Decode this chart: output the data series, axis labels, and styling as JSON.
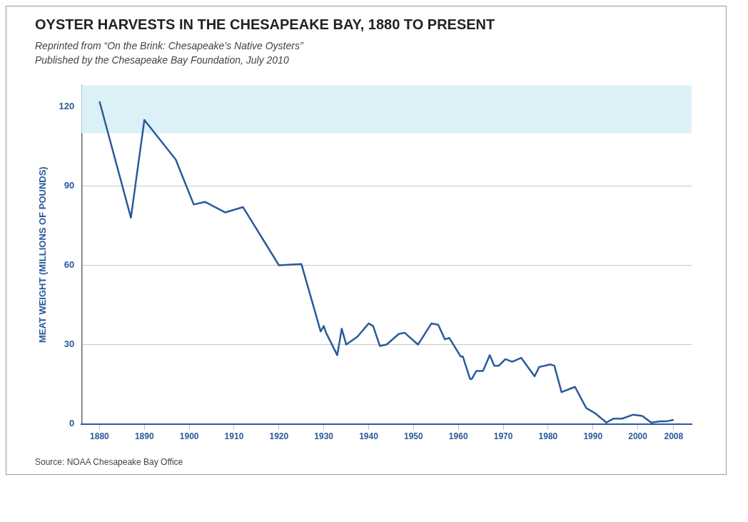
{
  "chart_data": {
    "type": "line",
    "title": "OYSTER HARVESTS IN THE CHESAPEAKE BAY, 1880 TO PRESENT",
    "subtitle": "Reprinted from “On the Brink: Chesapeake’s Native Oysters”\nPublished by the Chesapeake Bay Foundation, July 2010",
    "ylabel": "MEAT WEIGHT (MILLIONS OF POUNDS)",
    "annotations": [
      "Source: NOAA Chesapeake Bay Office"
    ],
    "x": [
      1880,
      1887,
      1890,
      1897,
      1901,
      1903.5,
      1908,
      1912,
      1920,
      1925,
      1929.3,
      1930,
      1930.5,
      1933,
      1934,
      1935,
      1937.5,
      1940,
      1941,
      1942.5,
      1944,
      1946.7,
      1948,
      1951,
      1954,
      1955.5,
      1957,
      1958,
      1960.5,
      1961,
      1962.6,
      1963,
      1964,
      1965.5,
      1967,
      1968,
      1969,
      1970.5,
      1972,
      1974,
      1977,
      1978,
      1980.5,
      1981.4,
      1983,
      1986,
      1988.5,
      1990.5,
      1993,
      1994.6,
      1996.5,
      1999,
      2001,
      2003,
      2005,
      2006.5,
      2008
    ],
    "series": [
      {
        "color": "#2b5a9c",
        "values": [
          122,
          78,
          115,
          100,
          83,
          84,
          80,
          82,
          60,
          60.5,
          35,
          37,
          34.5,
          26,
          36,
          30,
          33,
          38,
          37,
          29.5,
          30,
          34,
          34.5,
          30,
          38,
          37.5,
          32,
          32.5,
          25.5,
          25.5,
          17,
          17,
          20,
          20,
          26,
          22,
          22,
          24.5,
          23.5,
          25,
          18,
          21.5,
          22.5,
          22,
          12,
          14,
          6,
          4,
          0.5,
          2,
          2,
          3.5,
          3,
          0.5,
          1,
          1,
          1.5
        ]
      }
    ],
    "xlim": [
      1876,
      2012
    ],
    "xticks": [
      1880,
      1890,
      1900,
      1910,
      1920,
      1930,
      1940,
      1950,
      1960,
      1970,
      1980,
      1990,
      2000,
      2008
    ],
    "ylim": [
      0,
      128
    ],
    "yticks": [
      0,
      30,
      60,
      90,
      120
    ],
    "grid": "y",
    "marker": "none",
    "line_style": "solid",
    "bands": [
      {
        "axis": "y",
        "from": 110,
        "to": 128,
        "color": "#dcf0f7"
      }
    ]
  }
}
